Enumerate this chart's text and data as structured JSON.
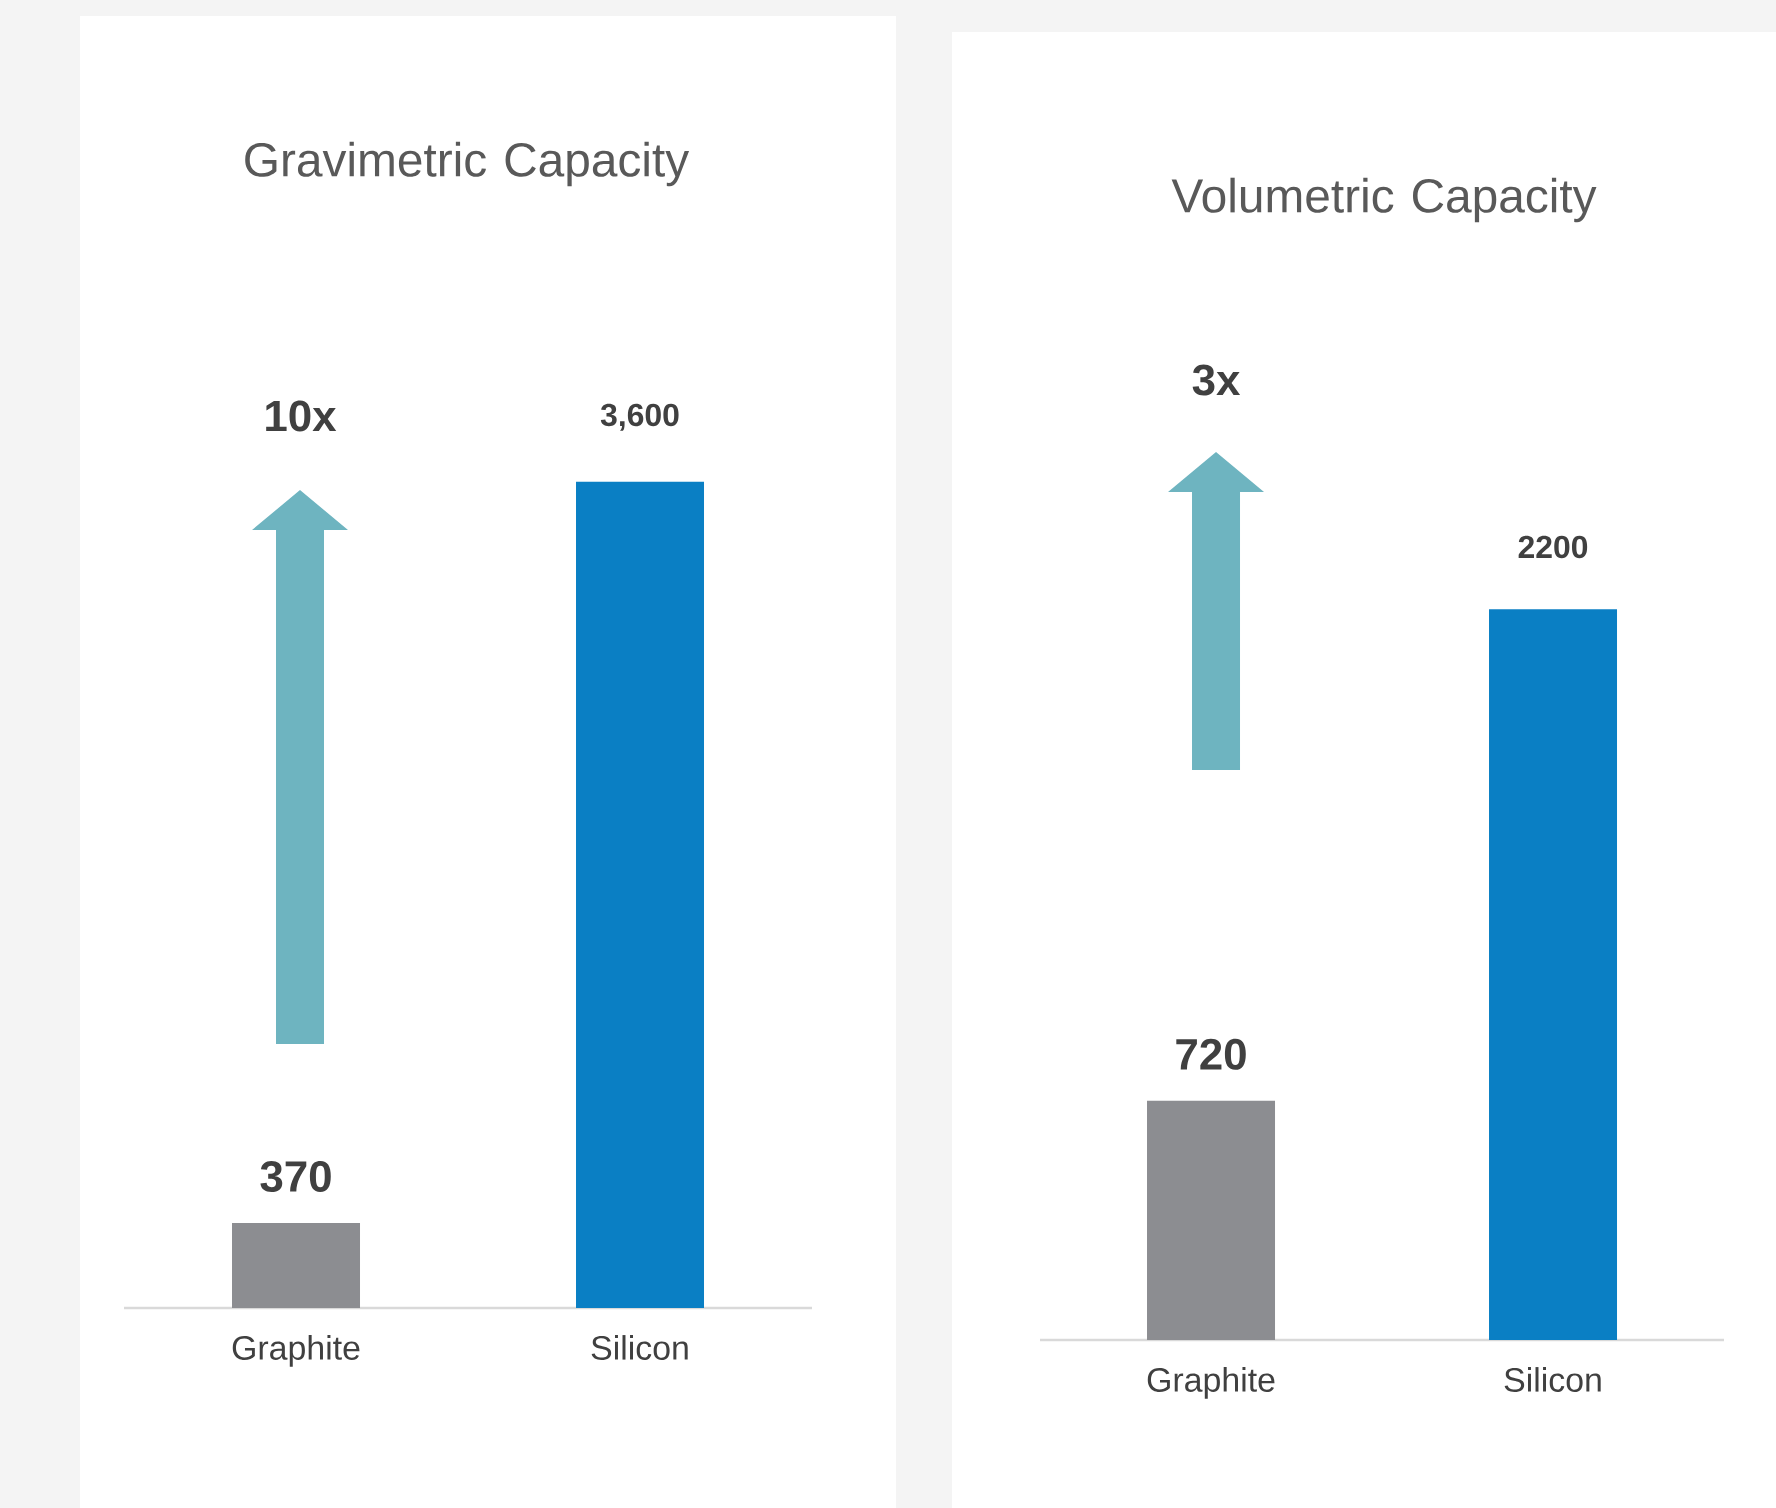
{
  "chart_data": [
    {
      "type": "bar",
      "title": "Gravimetric Capacity",
      "categories": [
        "Graphite",
        "Silicon"
      ],
      "values": [
        370,
        3600
      ],
      "colors": [
        "#8c8d91",
        "#0a7fc4"
      ],
      "value_labels": [
        "370",
        "3,600"
      ],
      "annotations": [
        "10x"
      ]
    },
    {
      "type": "bar",
      "title": "Volumetric Capacity",
      "categories": [
        "Graphite",
        "Silicon"
      ],
      "values": [
        720,
        2200
      ],
      "colors": [
        "#8c8d91",
        "#0a7fc4"
      ],
      "value_labels": [
        "720",
        "2200"
      ],
      "annotations": [
        "3x"
      ]
    }
  ]
}
